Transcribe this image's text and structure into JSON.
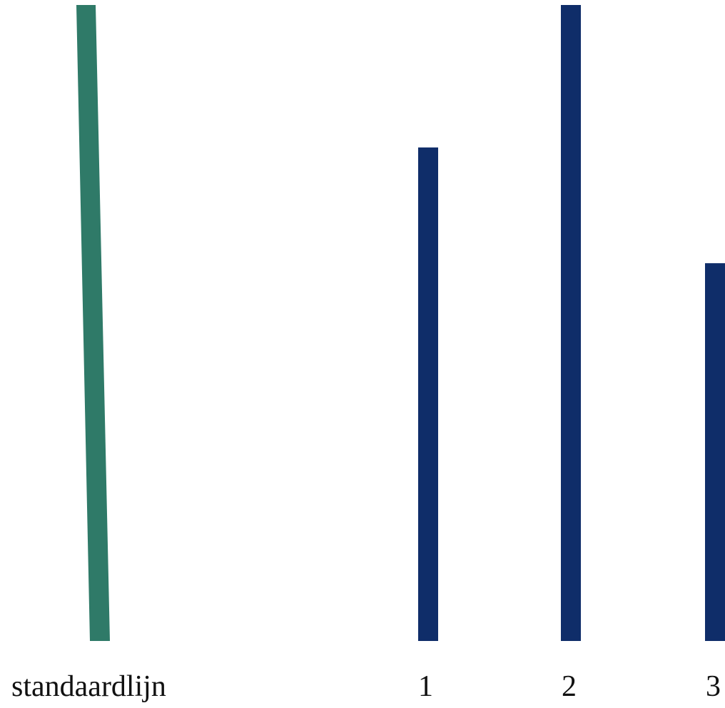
{
  "standard_line": {
    "label": "standaardlijn",
    "color": "#2f7a68",
    "relative_length": 1.0
  },
  "comparison_lines": [
    {
      "label": "1",
      "color": "#0f2d69",
      "relative_length": 0.776
    },
    {
      "label": "2",
      "color": "#0f2d69",
      "relative_length": 1.0
    },
    {
      "label": "3",
      "color": "#0f2d69",
      "relative_length": 0.594
    }
  ]
}
